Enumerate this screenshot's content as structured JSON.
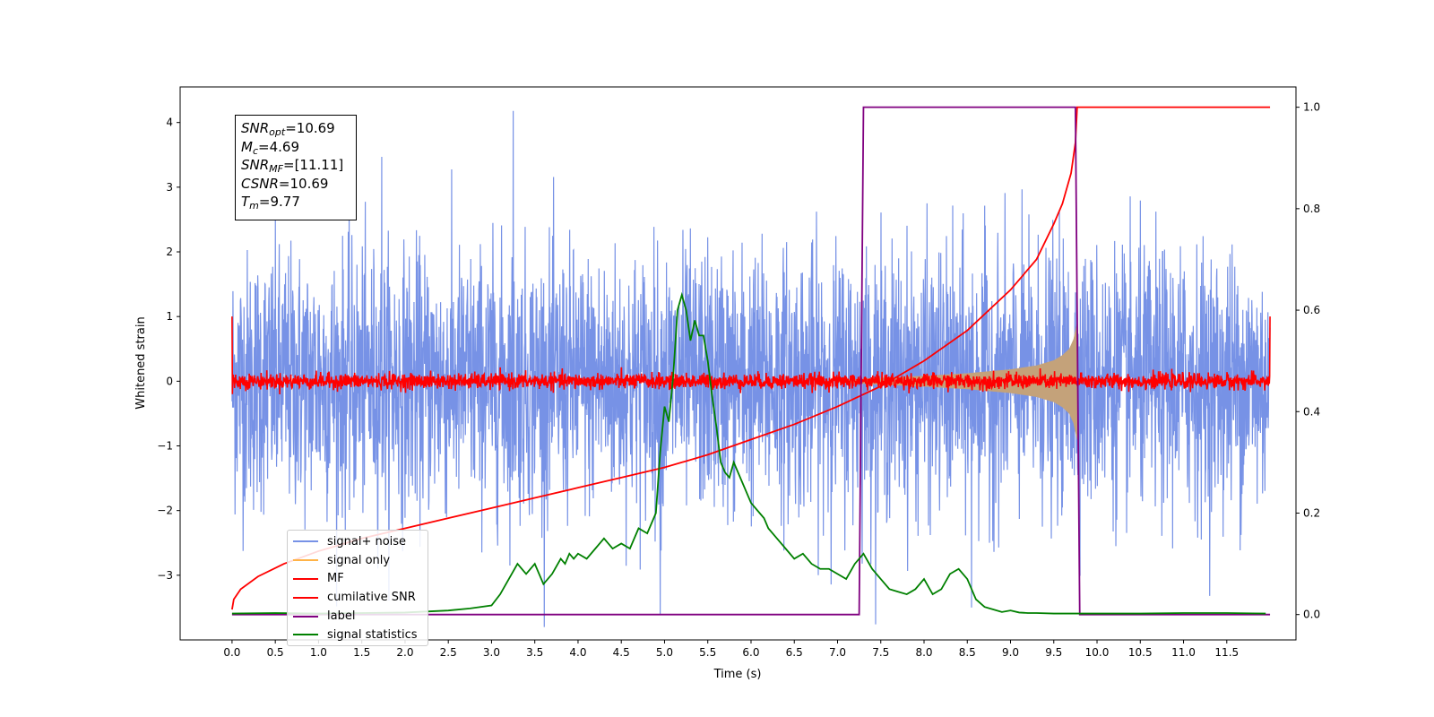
{
  "chart_data": {
    "type": "line",
    "xlabel": "Time (s)",
    "ylabel": "Whitened strain",
    "xlim": [
      -0.6,
      12.3
    ],
    "ylim_left": [
      -4.0,
      4.55
    ],
    "ylim_right": [
      -0.05,
      1.04
    ],
    "x_ticks": [
      0.0,
      0.5,
      1.0,
      1.5,
      2.0,
      2.5,
      3.0,
      3.5,
      4.0,
      4.5,
      5.0,
      5.5,
      6.0,
      6.5,
      7.0,
      7.5,
      8.0,
      8.5,
      9.0,
      9.5,
      10.0,
      10.5,
      11.0,
      11.5
    ],
    "x_tick_labels": [
      "0.0",
      "0.5",
      "1.0",
      "1.5",
      "2.0",
      "2.5",
      "3.0",
      "3.5",
      "4.0",
      "4.5",
      "5.0",
      "5.5",
      "6.0",
      "6.5",
      "7.0",
      "7.5",
      "8.0",
      "8.5",
      "9.0",
      "9.5",
      "10.0",
      "10.5",
      "11.0",
      "11.5"
    ],
    "y_left_ticks": [
      -3,
      -2,
      -1,
      0,
      1,
      2,
      3,
      4
    ],
    "y_left_tick_labels": [
      "−3",
      "−2",
      "−1",
      "0",
      "1",
      "2",
      "3",
      "4"
    ],
    "y_right_ticks": [
      0.0,
      0.2,
      0.4,
      0.6,
      0.8,
      1.0
    ],
    "y_right_tick_labels": [
      "0.0",
      "0.2",
      "0.4",
      "0.6",
      "0.8",
      "1.0"
    ],
    "grid": false,
    "legend_position": "bottom-left",
    "annotation": [
      {
        "base": "SNR",
        "sub": "opt",
        "value": "=10.69"
      },
      {
        "base": "M",
        "sub": "c",
        "value": "=4.69"
      },
      {
        "base": "SNR",
        "sub": "MF",
        "value": "=[11.11]"
      },
      {
        "base": "CSNR",
        "sub": "",
        "value": "=10.69"
      },
      {
        "base": "T",
        "sub": "m",
        "value": "=9.77"
      }
    ],
    "series": [
      {
        "name": "signal+ noise",
        "color": "#7792e6",
        "axis": "left",
        "kind": "noise",
        "t_range": [
          0,
          12.0
        ],
        "amplitude_sigma": 1.0,
        "peaks": [
          [
            3.25,
            4.18
          ],
          [
            4.95,
            -3.6
          ],
          [
            1.73,
            3.47
          ],
          [
            8.55,
            -3.5
          ]
        ]
      },
      {
        "name": "signal only",
        "color": "#ffb347",
        "axis": "left",
        "kind": "chirp-envelope",
        "envelope_points": [
          [
            7.0,
            0.02
          ],
          [
            7.5,
            0.05
          ],
          [
            8.0,
            0.08
          ],
          [
            8.5,
            0.12
          ],
          [
            9.0,
            0.18
          ],
          [
            9.3,
            0.24
          ],
          [
            9.5,
            0.32
          ],
          [
            9.6,
            0.4
          ],
          [
            9.68,
            0.5
          ],
          [
            9.73,
            0.65
          ],
          [
            9.77,
            0.9
          ],
          [
            9.78,
            0.0
          ]
        ]
      },
      {
        "name": "MF",
        "color": "#ff0000",
        "axis": "left",
        "kind": "noise-band",
        "t_range": [
          0,
          12.0
        ],
        "amplitude_sigma": 0.06,
        "edge_spike": 1.0
      },
      {
        "name": "cumilative SNR",
        "color": "#ff0000",
        "axis": "right",
        "x": [
          0.0,
          0.02,
          0.1,
          0.3,
          0.6,
          1.0,
          1.5,
          2.0,
          2.5,
          3.0,
          3.5,
          4.0,
          4.5,
          5.0,
          5.5,
          6.0,
          6.5,
          7.0,
          7.5,
          8.0,
          8.5,
          9.0,
          9.3,
          9.5,
          9.6,
          9.7,
          9.75,
          9.77,
          12.0
        ],
        "y": [
          0.01,
          0.03,
          0.05,
          0.075,
          0.1,
          0.125,
          0.15,
          0.17,
          0.19,
          0.21,
          0.23,
          0.25,
          0.27,
          0.29,
          0.315,
          0.345,
          0.375,
          0.41,
          0.45,
          0.5,
          0.56,
          0.64,
          0.7,
          0.77,
          0.81,
          0.87,
          0.93,
          1.0,
          1.0
        ]
      },
      {
        "name": "label",
        "color": "#800080",
        "axis": "right",
        "x": [
          0.0,
          7.25,
          7.3,
          9.75,
          9.8,
          12.0
        ],
        "y": [
          0.0,
          0.0,
          1.0,
          1.0,
          0.0,
          0.0
        ]
      },
      {
        "name": "signal statistics",
        "color": "#008000",
        "axis": "right",
        "x": [
          0.0,
          0.5,
          1.0,
          1.5,
          2.0,
          2.5,
          2.75,
          3.0,
          3.1,
          3.2,
          3.3,
          3.4,
          3.5,
          3.6,
          3.7,
          3.8,
          3.85,
          3.9,
          3.95,
          4.0,
          4.1,
          4.2,
          4.25,
          4.3,
          4.35,
          4.4,
          4.5,
          4.6,
          4.7,
          4.8,
          4.9,
          4.95,
          5.0,
          5.05,
          5.1,
          5.15,
          5.2,
          5.25,
          5.3,
          5.35,
          5.4,
          5.45,
          5.5,
          5.55,
          5.6,
          5.65,
          5.7,
          5.75,
          5.8,
          5.9,
          6.0,
          6.1,
          6.15,
          6.2,
          6.3,
          6.4,
          6.5,
          6.6,
          6.7,
          6.8,
          6.9,
          7.0,
          7.1,
          7.2,
          7.3,
          7.4,
          7.5,
          7.6,
          7.7,
          7.8,
          7.9,
          8.0,
          8.1,
          8.2,
          8.3,
          8.4,
          8.5,
          8.6,
          8.7,
          8.8,
          8.9,
          9.0,
          9.1,
          9.2,
          9.3,
          9.5,
          10.0,
          10.5,
          11.0,
          11.5,
          11.95
        ],
        "y": [
          0.002,
          0.003,
          0.002,
          0.003,
          0.004,
          0.008,
          0.012,
          0.018,
          0.04,
          0.07,
          0.1,
          0.08,
          0.1,
          0.06,
          0.08,
          0.11,
          0.1,
          0.12,
          0.11,
          0.12,
          0.11,
          0.13,
          0.14,
          0.15,
          0.14,
          0.13,
          0.14,
          0.13,
          0.17,
          0.16,
          0.2,
          0.32,
          0.41,
          0.38,
          0.47,
          0.6,
          0.63,
          0.6,
          0.54,
          0.58,
          0.55,
          0.55,
          0.5,
          0.43,
          0.37,
          0.3,
          0.28,
          0.27,
          0.3,
          0.26,
          0.22,
          0.2,
          0.19,
          0.17,
          0.15,
          0.13,
          0.11,
          0.12,
          0.1,
          0.09,
          0.09,
          0.08,
          0.07,
          0.1,
          0.12,
          0.09,
          0.07,
          0.05,
          0.045,
          0.04,
          0.05,
          0.07,
          0.04,
          0.05,
          0.08,
          0.09,
          0.07,
          0.03,
          0.015,
          0.01,
          0.005,
          0.008,
          0.004,
          0.003,
          0.003,
          0.002,
          0.002,
          0.002,
          0.003,
          0.003,
          0.002
        ]
      }
    ]
  }
}
